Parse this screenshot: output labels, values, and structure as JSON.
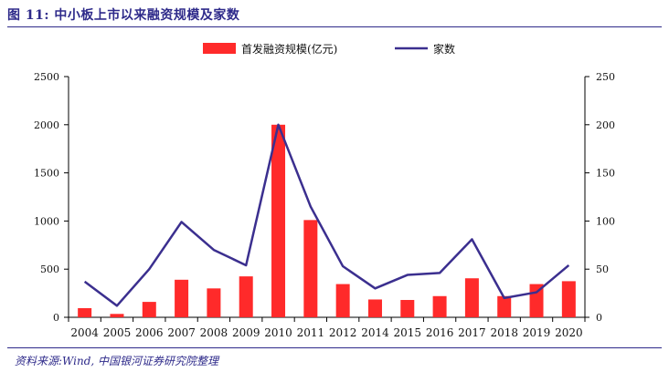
{
  "figure": {
    "title": "图 11:  中小板上市以来融资规模及家数",
    "source": "资料来源:Wind, 中国银河证券研究院整理"
  },
  "colors": {
    "bar": "#ff2a2a",
    "line": "#3b2f8f",
    "axis": "#000000",
    "header": "#2e2a8a"
  },
  "chart_data": {
    "type": "bar+line",
    "categories": [
      "2004",
      "2005",
      "2006",
      "2007",
      "2008",
      "2009",
      "2010",
      "2011",
      "2012",
      "2014",
      "2015",
      "2016",
      "2017",
      "2018",
      "2019",
      "2020"
    ],
    "series": [
      {
        "name": "首发融资规模(亿元)",
        "type": "bar",
        "axis": "left",
        "values": [
          95,
          35,
          160,
          390,
          300,
          425,
          2000,
          1010,
          345,
          185,
          180,
          220,
          405,
          220,
          345,
          375
        ]
      },
      {
        "name": "家数",
        "type": "line",
        "axis": "right",
        "values": [
          37,
          12,
          50,
          99,
          70,
          54,
          200,
          115,
          53,
          30,
          44,
          46,
          81,
          20,
          26,
          54
        ]
      }
    ],
    "ylim_left": [
      0,
      2500
    ],
    "yticks_left": [
      "0",
      "500",
      "1000",
      "1500",
      "2000",
      "2500"
    ],
    "ylim_right": [
      0,
      250
    ],
    "yticks_right": [
      "0",
      "50",
      "100",
      "150",
      "200",
      "250"
    ],
    "legend_position": "top-center",
    "grid": false
  }
}
